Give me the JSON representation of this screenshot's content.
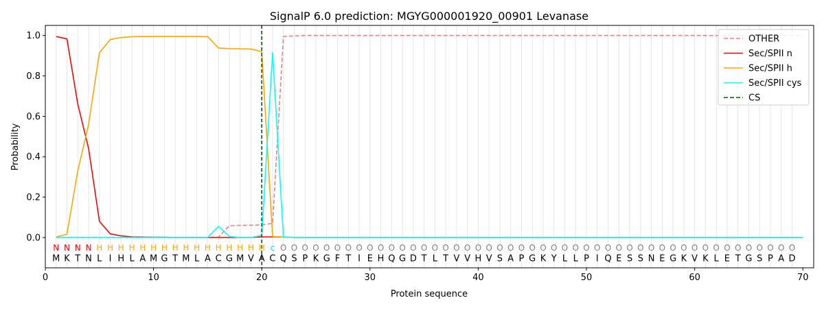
{
  "chart_data": {
    "type": "line",
    "title": "SignalP 6.0 prediction: MGYG000001920_00901 Levanase",
    "xlabel": "Protein sequence",
    "ylabel": "Probability",
    "xlim": [
      0,
      71
    ],
    "ylim": [
      -0.15,
      1.05
    ],
    "xticks": [
      0,
      10,
      20,
      30,
      40,
      50,
      60,
      70
    ],
    "yticks": [
      0.0,
      0.2,
      0.4,
      0.6,
      0.8,
      1.0
    ],
    "ytick_labels": [
      "0.0",
      "0.2",
      "0.4",
      "0.6",
      "0.8",
      "1.0"
    ],
    "grid": "vertical lines at each residue",
    "legend_position": "top-right",
    "sequence": [
      "M",
      "K",
      "T",
      "N",
      "L",
      "I",
      "H",
      "L",
      "A",
      "M",
      "G",
      "T",
      "M",
      "L",
      "A",
      "C",
      "G",
      "M",
      "V",
      "A",
      "C",
      "Q",
      "S",
      "P",
      "K",
      "G",
      "F",
      "T",
      "I",
      "E",
      "H",
      "Q",
      "G",
      "D",
      "T",
      "L",
      "T",
      "V",
      "V",
      "H",
      "V",
      "S",
      "A",
      "P",
      "G",
      "K",
      "Y",
      "L",
      "L",
      "P",
      "I",
      "Q",
      "E",
      "S",
      "S",
      "N",
      "E",
      "G",
      "K",
      "V",
      "K",
      "L",
      "E",
      "T",
      "G",
      "S",
      "P",
      "A",
      "D"
    ],
    "labels": [
      "N",
      "N",
      "N",
      "N",
      "H",
      "H",
      "H",
      "H",
      "H",
      "H",
      "H",
      "H",
      "H",
      "H",
      "H",
      "H",
      "H",
      "H",
      "H",
      "H",
      "c",
      "O",
      "O",
      "O",
      "O",
      "O",
      "O",
      "O",
      "O",
      "O",
      "O",
      "O",
      "O",
      "O",
      "O",
      "O",
      "O",
      "O",
      "O",
      "O",
      "O",
      "O",
      "O",
      "O",
      "O",
      "O",
      "O",
      "O",
      "O",
      "O",
      "O",
      "O",
      "O",
      "O",
      "O",
      "O",
      "O",
      "O",
      "O",
      "O",
      "O",
      "O",
      "O",
      "O",
      "O",
      "O",
      "O",
      "O",
      "O",
      "O"
    ],
    "label_colors": {
      "N": "#ff0000",
      "H": "#ffa500",
      "c": "#00e5ee",
      "O": "#808080"
    },
    "cs_position": 20,
    "series": [
      {
        "name": "OTHER",
        "color": "#f08080",
        "dash": "dashed",
        "values": [
          0,
          0,
          0,
          0,
          0,
          0,
          0,
          0,
          0,
          0,
          0,
          0,
          0,
          0,
          0,
          0.002,
          0.058,
          0.06,
          0.061,
          0.062,
          0.07,
          0.995,
          0.998,
          1,
          1,
          1,
          1,
          1,
          1,
          1,
          1,
          1,
          1,
          1,
          1,
          1,
          1,
          1,
          1,
          1,
          1,
          1,
          1,
          1,
          1,
          1,
          1,
          1,
          1,
          1,
          1,
          1,
          1,
          1,
          1,
          1,
          1,
          1,
          1,
          1,
          1,
          1,
          1,
          1,
          1,
          1,
          1,
          1,
          1,
          1
        ]
      },
      {
        "name": "Sec/SPII n",
        "color": "#ff0000",
        "dash": "solid",
        "values": [
          0.995,
          0.983,
          0.66,
          0.44,
          0.08,
          0.018,
          0.008,
          0.003,
          0.002,
          0.001,
          0.001,
          0,
          0,
          0,
          0,
          0,
          0,
          0,
          0,
          0.003,
          0.003,
          0.002,
          0,
          0,
          0,
          0,
          0,
          0,
          0,
          0,
          0,
          0,
          0,
          0,
          0,
          0,
          0,
          0,
          0,
          0,
          0,
          0,
          0,
          0,
          0,
          0,
          0,
          0,
          0,
          0,
          0,
          0,
          0,
          0,
          0,
          0,
          0,
          0,
          0,
          0,
          0,
          0,
          0,
          0,
          0,
          0,
          0,
          0,
          0,
          0
        ]
      },
      {
        "name": "Sec/SPII h",
        "color": "#ffa500",
        "dash": "solid",
        "values": [
          0.002,
          0.017,
          0.33,
          0.56,
          0.915,
          0.98,
          0.99,
          0.994,
          0.995,
          0.995,
          0.995,
          0.995,
          0.995,
          0.995,
          0.994,
          0.938,
          0.935,
          0.934,
          0.933,
          0.92,
          0.005,
          0.002,
          0,
          0,
          0,
          0,
          0,
          0,
          0,
          0,
          0,
          0,
          0,
          0,
          0,
          0,
          0,
          0,
          0,
          0,
          0,
          0,
          0,
          0,
          0,
          0,
          0,
          0,
          0,
          0,
          0,
          0,
          0,
          0,
          0,
          0,
          0,
          0,
          0,
          0,
          0,
          0,
          0,
          0,
          0,
          0,
          0,
          0,
          0,
          0
        ]
      },
      {
        "name": "Sec/SPII cys",
        "color": "#00ffff",
        "dash": "solid",
        "values": [
          0,
          0,
          0,
          0,
          0,
          0,
          0,
          0,
          0,
          0,
          0,
          0,
          0,
          0,
          0,
          0.055,
          0.005,
          0,
          0,
          0.01,
          0.915,
          0.003,
          0,
          0,
          0,
          0,
          0,
          0,
          0,
          0,
          0,
          0,
          0,
          0,
          0,
          0,
          0,
          0,
          0,
          0,
          0,
          0,
          0,
          0,
          0,
          0,
          0,
          0,
          0,
          0,
          0,
          0,
          0,
          0,
          0,
          0,
          0,
          0,
          0,
          0,
          0,
          0,
          0,
          0,
          0,
          0,
          0,
          0,
          0,
          0
        ]
      },
      {
        "name": "CS",
        "color": "#006400",
        "dash": "dashed",
        "kind": "vline",
        "x": 20
      }
    ]
  }
}
